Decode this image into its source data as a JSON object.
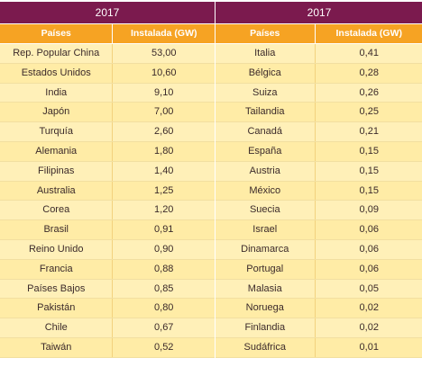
{
  "left": {
    "year": "2017",
    "col_country": "Países",
    "col_installed": "Instalada (GW)",
    "rows": [
      {
        "country": "Rep. Popular China",
        "value": "53,00"
      },
      {
        "country": "Estados Unidos",
        "value": "10,60"
      },
      {
        "country": "India",
        "value": "9,10"
      },
      {
        "country": "Japón",
        "value": "7,00"
      },
      {
        "country": "Turquía",
        "value": "2,60"
      },
      {
        "country": "Alemania",
        "value": "1,80"
      },
      {
        "country": "Filipinas",
        "value": "1,40"
      },
      {
        "country": "Australia",
        "value": "1,25"
      },
      {
        "country": "Corea",
        "value": "1,20"
      },
      {
        "country": "Brasil",
        "value": "0,91"
      },
      {
        "country": "Reino Unido",
        "value": "0,90"
      },
      {
        "country": "Francia",
        "value": "0,88"
      },
      {
        "country": "Países Bajos",
        "value": "0,85"
      },
      {
        "country": "Pakistán",
        "value": "0,80"
      },
      {
        "country": "Chile",
        "value": "0,67"
      },
      {
        "country": "Taiwán",
        "value": "0,52"
      }
    ]
  },
  "right": {
    "year": "2017",
    "col_country": "Países",
    "col_installed": "Instalada (GW)",
    "rows": [
      {
        "country": "Italia",
        "value": "0,41"
      },
      {
        "country": "Bélgica",
        "value": "0,28"
      },
      {
        "country": "Suiza",
        "value": "0,26"
      },
      {
        "country": "Tailandia",
        "value": "0,25"
      },
      {
        "country": "Canadá",
        "value": "0,21"
      },
      {
        "country": "España",
        "value": "0,15"
      },
      {
        "country": "Austria",
        "value": "0,15"
      },
      {
        "country": "México",
        "value": "0,15"
      },
      {
        "country": "Suecia",
        "value": "0,09"
      },
      {
        "country": "Israel",
        "value": "0,06"
      },
      {
        "country": "Dinamarca",
        "value": "0,06"
      },
      {
        "country": "Portugal",
        "value": "0,06"
      },
      {
        "country": "Malasia",
        "value": "0,05"
      },
      {
        "country": "Noruega",
        "value": "0,02"
      },
      {
        "country": "Finlandia",
        "value": "0,02"
      },
      {
        "country": "Sudáfrica",
        "value": "0,01"
      }
    ]
  },
  "colors": {
    "header_purple": "#7b1a4e",
    "header_orange": "#f6a323",
    "row_yellow": "#fff0b8"
  }
}
